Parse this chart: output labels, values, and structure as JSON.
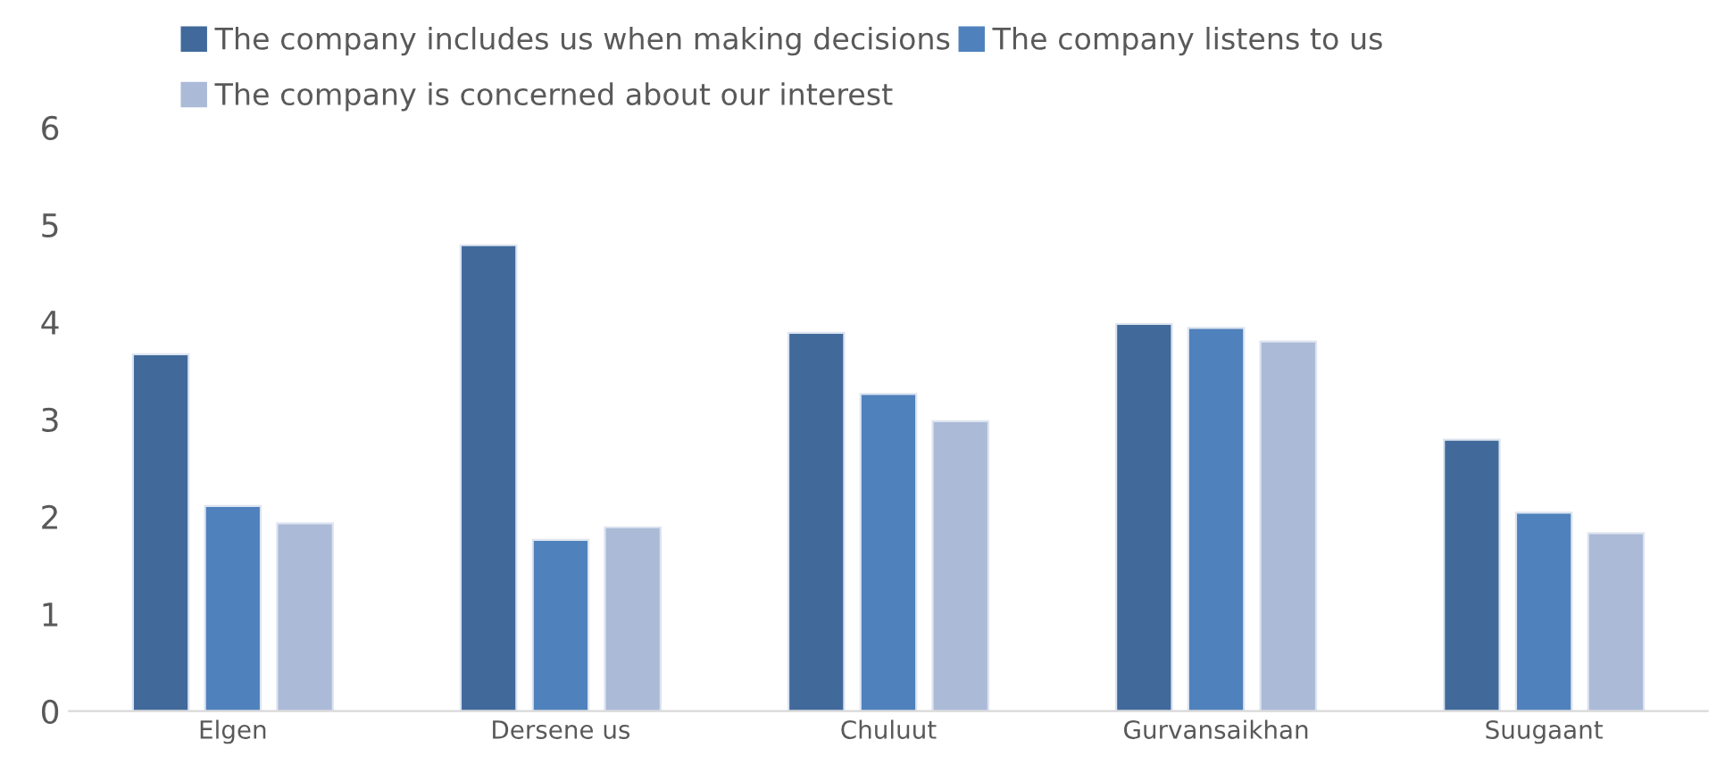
{
  "chart_data": {
    "type": "bar",
    "categories": [
      "Elgen",
      "Dersene us",
      "Chuluut",
      "Gurvansaikhan",
      "Suugaant"
    ],
    "series": [
      {
        "name": "The company includes us when making decisions",
        "color": "#416a9b",
        "values": [
          3.67,
          4.79,
          3.89,
          3.98,
          2.79
        ]
      },
      {
        "name": "The company listens to us",
        "color": "#4f81bc",
        "values": [
          2.11,
          1.76,
          3.26,
          3.94,
          2.04
        ]
      },
      {
        "name": "The company is concerned about our interest",
        "color": "#abbad7",
        "values": [
          1.93,
          1.89,
          2.98,
          3.8,
          1.83
        ]
      }
    ],
    "ylim": [
      0,
      6
    ],
    "yticks": [
      0,
      1,
      2,
      3,
      4,
      5,
      6
    ],
    "grid": false,
    "legend": "top left"
  }
}
